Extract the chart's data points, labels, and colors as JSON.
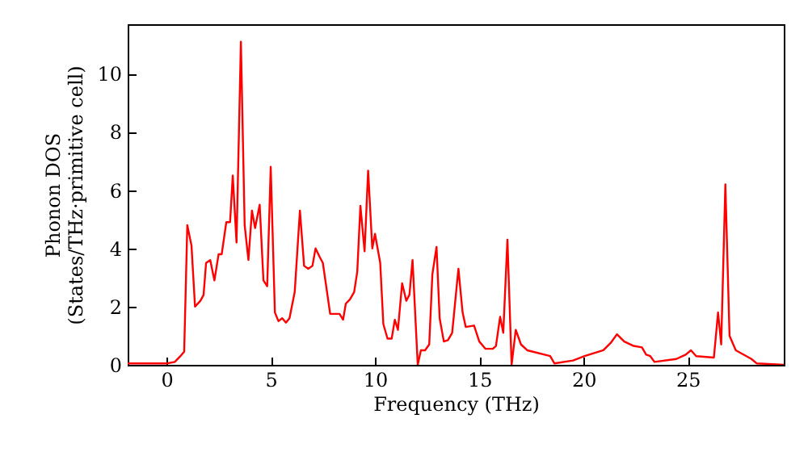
{
  "chart_data": {
    "type": "line",
    "xlabel": "Frequency (THz)",
    "ylabel": "Phonon DOS\n(States/THz·primitive cell)",
    "xlim": [
      -1.86,
      29.6
    ],
    "ylim": [
      0,
      11.7
    ],
    "xticks": [
      0,
      5,
      10,
      15,
      20,
      25
    ],
    "yticks": [
      0,
      2,
      4,
      6,
      8,
      10
    ],
    "grid": false,
    "line_style": "solid",
    "marker": "none",
    "series": [
      {
        "color": "#ff0000",
        "x": [
          -1.86,
          0.03,
          0.4,
          0.67,
          0.85,
          1.0,
          1.2,
          1.37,
          1.63,
          1.78,
          1.9,
          2.1,
          2.3,
          2.5,
          2.65,
          2.87,
          3.05,
          3.18,
          3.36,
          3.57,
          3.75,
          3.93,
          4.1,
          4.25,
          4.47,
          4.65,
          4.83,
          5.0,
          5.2,
          5.37,
          5.55,
          5.73,
          5.9,
          6.15,
          6.4,
          6.6,
          6.8,
          7.0,
          7.15,
          7.35,
          7.5,
          7.85,
          8.3,
          8.47,
          8.6,
          8.8,
          9.0,
          9.15,
          9.3,
          9.5,
          9.67,
          9.87,
          10.0,
          10.25,
          10.4,
          10.6,
          10.8,
          10.95,
          11.1,
          11.3,
          11.5,
          11.65,
          11.8,
          12.05,
          12.2,
          12.4,
          12.6,
          12.75,
          12.95,
          13.1,
          13.3,
          13.5,
          13.7,
          14.0,
          14.2,
          14.35,
          14.75,
          15.0,
          15.3,
          15.65,
          15.8,
          16.0,
          16.15,
          16.35,
          16.55,
          16.75,
          17.0,
          17.3,
          18.4,
          18.6,
          19.5,
          20.05,
          20.95,
          21.3,
          21.6,
          21.95,
          22.4,
          22.8,
          23.0,
          23.2,
          23.4,
          24.45,
          24.9,
          25.15,
          25.4,
          26.25,
          26.45,
          26.6,
          26.8,
          27.0,
          27.3,
          28.05,
          28.3,
          29.6
        ],
        "values": [
          0.05,
          0.05,
          0.1,
          0.3,
          0.45,
          4.8,
          4.1,
          2.0,
          2.2,
          2.4,
          3.5,
          3.6,
          2.9,
          3.8,
          3.8,
          4.9,
          4.9,
          6.5,
          4.2,
          11.1,
          4.8,
          3.6,
          5.3,
          4.7,
          5.5,
          2.9,
          2.7,
          6.8,
          1.8,
          1.5,
          1.6,
          1.45,
          1.6,
          2.5,
          5.3,
          3.4,
          3.3,
          3.4,
          4.0,
          3.7,
          3.5,
          1.75,
          1.75,
          1.55,
          2.1,
          2.25,
          2.5,
          3.2,
          5.46,
          3.9,
          6.67,
          4.0,
          4.5,
          3.5,
          1.4,
          0.9,
          0.9,
          1.55,
          1.2,
          2.8,
          2.2,
          2.4,
          3.6,
          0,
          0.5,
          0.5,
          0.7,
          3.1,
          4.05,
          1.6,
          0.8,
          0.85,
          1.1,
          3.3,
          1.8,
          1.3,
          1.35,
          0.8,
          0.55,
          0.55,
          0.65,
          1.65,
          1.1,
          4.3,
          0,
          1.2,
          0.7,
          0.5,
          0.3,
          0.05,
          0.15,
          0.3,
          0.5,
          0.75,
          1.05,
          0.8,
          0.65,
          0.6,
          0.35,
          0.3,
          0.1,
          0.2,
          0.35,
          0.5,
          0.3,
          0.25,
          1.8,
          0.7,
          6.2,
          1.0,
          0.5,
          0.2,
          0.05,
          0
        ]
      }
    ]
  }
}
